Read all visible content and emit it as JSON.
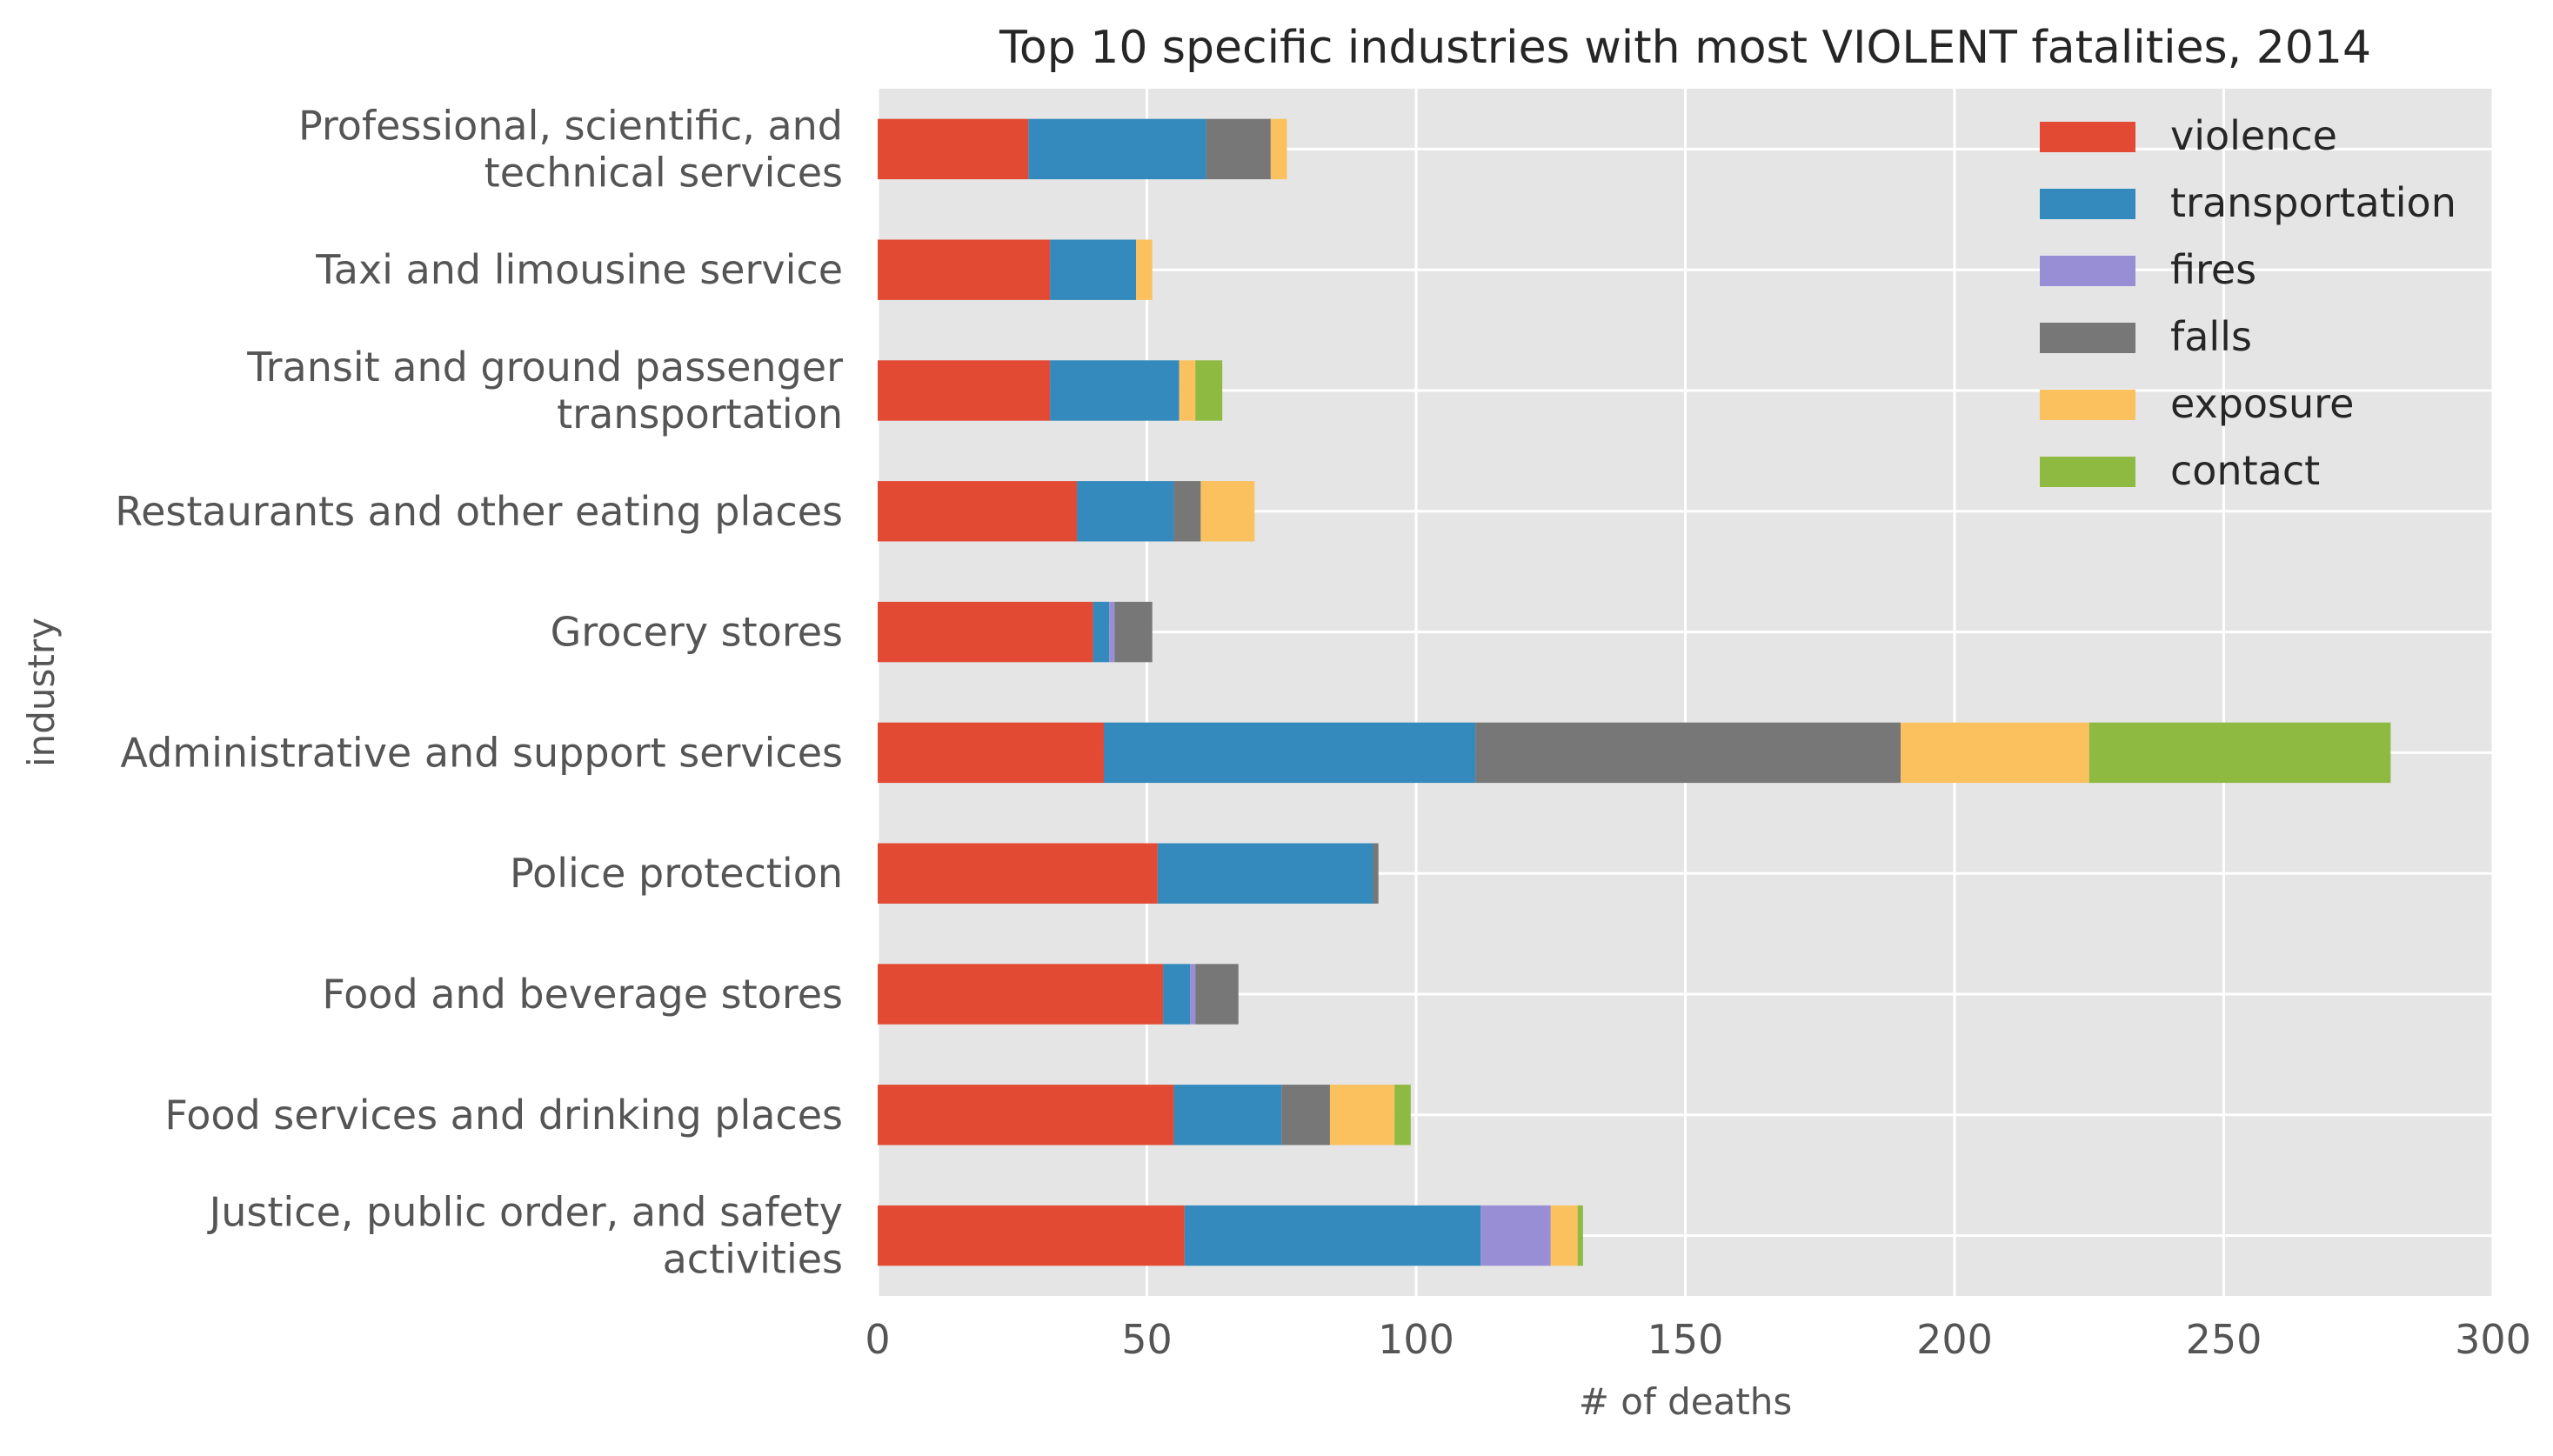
{
  "chart_data": {
    "type": "bar",
    "orientation": "horizontal",
    "stacked": true,
    "title": "Top 10 specific industries with most VIOLENT fatalities, 2014",
    "xlabel": "# of deaths",
    "ylabel": "industry",
    "xlim": [
      0,
      300
    ],
    "xticks": [
      "0",
      "50",
      "100",
      "150",
      "200",
      "250",
      "300"
    ],
    "grid": true,
    "legend_position": "top-right",
    "categories": [
      [
        "Professional, scientific, and",
        "technical services"
      ],
      [
        "Taxi and limousine service"
      ],
      [
        "Transit and ground passenger",
        "transportation"
      ],
      [
        "Restaurants and other eating places"
      ],
      [
        "Grocery stores"
      ],
      [
        "Administrative and support services"
      ],
      [
        "Police protection"
      ],
      [
        "Food and beverage stores"
      ],
      [
        "Food services and drinking places"
      ],
      [
        "Justice, public order, and safety",
        "activities"
      ]
    ],
    "series": [
      {
        "name": "violence",
        "color": "#E24A33",
        "values": [
          28,
          32,
          32,
          37,
          40,
          42,
          52,
          53,
          55,
          57
        ]
      },
      {
        "name": "transportation",
        "color": "#348ABD",
        "values": [
          33,
          16,
          24,
          18,
          3,
          69,
          40,
          5,
          20,
          55
        ]
      },
      {
        "name": "fires",
        "color": "#988ED5",
        "values": [
          0,
          0,
          0,
          0,
          1,
          0,
          0,
          1,
          0,
          13
        ]
      },
      {
        "name": "falls",
        "color": "#777777",
        "values": [
          12,
          0,
          0,
          5,
          7,
          79,
          1,
          8,
          9,
          0
        ]
      },
      {
        "name": "exposure",
        "color": "#FBC15E",
        "values": [
          3,
          3,
          3,
          10,
          0,
          35,
          0,
          0,
          12,
          5
        ]
      },
      {
        "name": "contact",
        "color": "#8EBA42",
        "values": [
          0,
          0,
          5,
          0,
          0,
          56,
          0,
          0,
          3,
          1
        ]
      }
    ]
  }
}
